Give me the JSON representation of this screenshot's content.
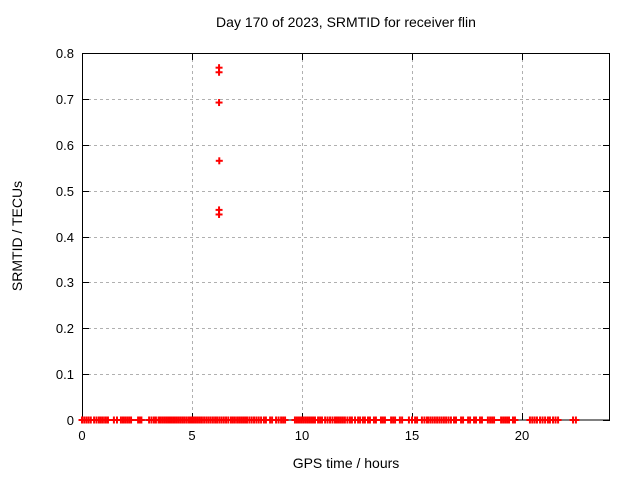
{
  "chart_data": {
    "type": "scatter",
    "title": "Day 170 of 2023, SRMTID for receiver flin",
    "xlabel": "GPS time / hours",
    "ylabel": "SRMTID / TECUs",
    "xlim": [
      0,
      24
    ],
    "ylim": [
      0,
      0.8
    ],
    "xticks": [
      0,
      5,
      10,
      15,
      20
    ],
    "xtick_labels": [
      "0",
      "5",
      "10",
      "15",
      "20"
    ],
    "yticks": [
      0,
      0.1,
      0.2,
      0.3,
      0.4,
      0.5,
      0.6,
      0.7,
      0.8
    ],
    "ytick_labels": [
      "0",
      "0.1",
      "0.2",
      "0.3",
      "0.4",
      "0.5",
      "0.6",
      "0.7",
      "0.8"
    ],
    "grid": true,
    "legend": "none",
    "marker": "plus",
    "series": [
      {
        "name": "SRMTID",
        "outlier_points": [
          [
            6.23,
            0.768
          ],
          [
            6.23,
            0.758
          ],
          [
            6.23,
            0.692
          ],
          [
            6.24,
            0.565
          ],
          [
            6.23,
            0.458
          ],
          [
            6.23,
            0.448
          ]
        ],
        "zero_value_clusters": [
          [
            0.0,
            0.4
          ],
          [
            0.55,
            0.66
          ],
          [
            0.77,
            0.86
          ],
          [
            0.95,
            1.05
          ],
          [
            1.14,
            1.18
          ],
          [
            1.45,
            1.59
          ],
          [
            1.77,
            2.05
          ],
          [
            2.14,
            2.23
          ],
          [
            2.55,
            2.7
          ],
          [
            3.05,
            3.27
          ],
          [
            3.36,
            3.48
          ],
          [
            3.55,
            4.0
          ],
          [
            4.09,
            4.55
          ],
          [
            4.64,
            4.83
          ],
          [
            4.91,
            5.36
          ],
          [
            5.45,
            6.05
          ],
          [
            6.14,
            6.65
          ],
          [
            6.77,
            6.95
          ],
          [
            7.05,
            7.41
          ],
          [
            7.5,
            8.14
          ],
          [
            8.27,
            8.36
          ],
          [
            8.55,
            8.64
          ],
          [
            8.82,
            9.05
          ],
          [
            9.14,
            9.23
          ],
          [
            9.68,
            10.14
          ],
          [
            10.23,
            10.41
          ],
          [
            10.5,
            10.59
          ],
          [
            10.73,
            10.91
          ],
          [
            11.05,
            11.5
          ],
          [
            11.59,
            11.86
          ],
          [
            11.95,
            12.18
          ],
          [
            12.27,
            12.41
          ],
          [
            12.55,
            12.64
          ],
          [
            12.77,
            12.86
          ],
          [
            13.0,
            13.09
          ],
          [
            13.27,
            13.36
          ],
          [
            13.59,
            13.77
          ],
          [
            14.05,
            14.23
          ],
          [
            14.45,
            14.55
          ],
          [
            14.86,
            15.0
          ],
          [
            15.14,
            15.23
          ],
          [
            15.45,
            15.68
          ],
          [
            15.73,
            16.45
          ],
          [
            16.55,
            16.77
          ],
          [
            16.91,
            17.0
          ],
          [
            17.23,
            17.32
          ],
          [
            17.55,
            17.64
          ],
          [
            17.82,
            17.91
          ],
          [
            18.09,
            18.18
          ],
          [
            18.45,
            18.55
          ],
          [
            18.64,
            18.73
          ],
          [
            19.05,
            19.41
          ],
          [
            19.59,
            19.68
          ],
          [
            20.36,
            20.68
          ],
          [
            20.82,
            21.05
          ],
          [
            21.18,
            21.27
          ],
          [
            21.41,
            21.64
          ],
          [
            22.32,
            22.45
          ]
        ]
      }
    ],
    "colors": {
      "marker": "#ff0000",
      "grid": "#b0b0b0",
      "axis": "#000000",
      "background": "#ffffff"
    }
  }
}
